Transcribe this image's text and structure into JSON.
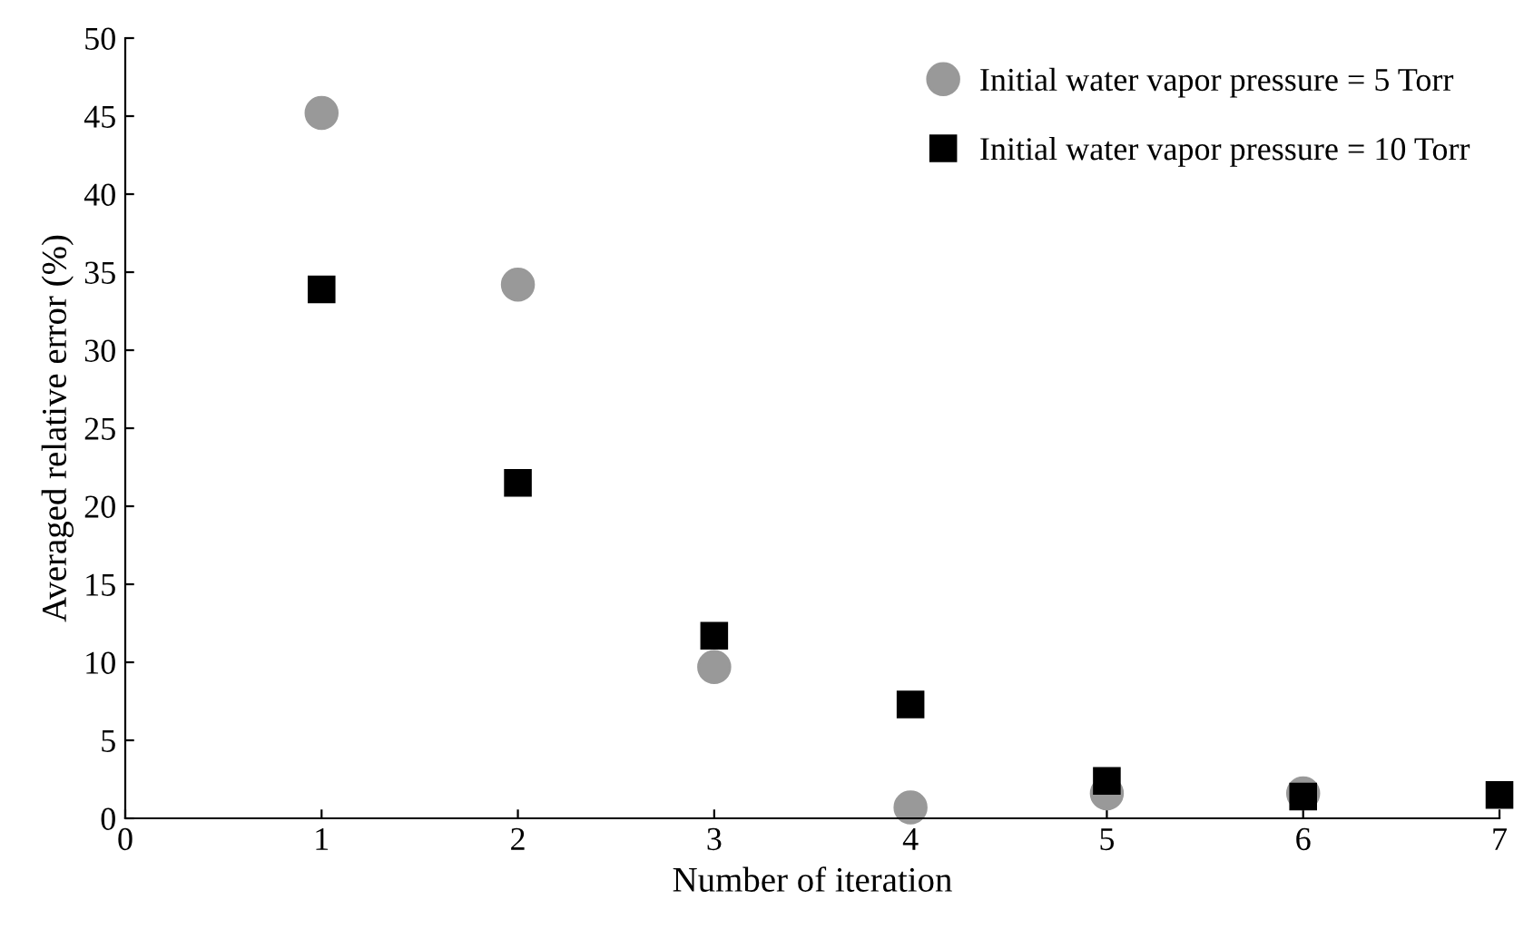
{
  "chart_data": {
    "type": "scatter",
    "xlabel": "Number of iteration",
    "ylabel": "Averaged relative error (%)",
    "xlim": [
      0,
      7
    ],
    "xticks": [
      0,
      1,
      2,
      3,
      4,
      5,
      6,
      7
    ],
    "ylim": [
      0,
      50
    ],
    "yticks": [
      0,
      5,
      10,
      15,
      20,
      25,
      30,
      35,
      40,
      45,
      50
    ],
    "x": [
      1,
      2,
      3,
      4,
      5,
      6,
      7
    ],
    "series": [
      {
        "name": "Initial water vapor pressure = 5 Torr",
        "color": "#999999",
        "marker": "circle",
        "values": [
          45.2,
          34.2,
          9.7,
          0.7,
          1.6,
          1.6,
          null
        ]
      },
      {
        "name": "Initial water vapor pressure = 10 Torr",
        "color": "#000000",
        "marker": "square",
        "values": [
          33.9,
          21.5,
          11.7,
          7.3,
          2.4,
          1.4,
          1.5
        ]
      }
    ],
    "legend": "top right",
    "grid": false
  }
}
